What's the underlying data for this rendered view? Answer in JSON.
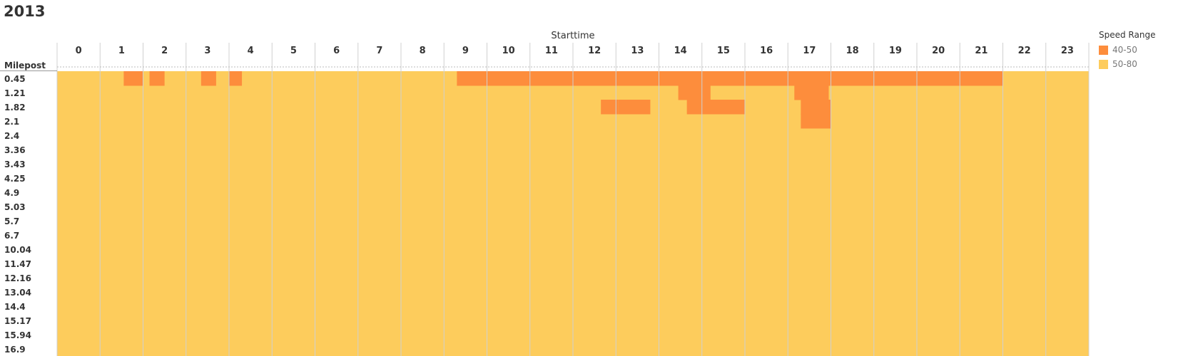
{
  "chart_data": {
    "type": "heatmap",
    "title": "2013",
    "xlabel": "Starttime",
    "ylabel": "Milepost",
    "x": [
      "0",
      "1",
      "2",
      "3",
      "4",
      "5",
      "6",
      "7",
      "8",
      "9",
      "10",
      "11",
      "12",
      "13",
      "14",
      "15",
      "16",
      "17",
      "18",
      "19",
      "20",
      "21",
      "22",
      "23"
    ],
    "y": [
      "0.45",
      "1.21",
      "1.82",
      "2.1",
      "2.4",
      "3.36",
      "3.43",
      "4.25",
      "4.9",
      "5.03",
      "5.7",
      "6.7",
      "10.04",
      "11.47",
      "12.16",
      "13.04",
      "14.4",
      "15.17",
      "15.94",
      "16.9"
    ],
    "legend": {
      "title": "Speed Range",
      "placement": "top-right",
      "entries": [
        {
          "label": "40-50",
          "color": "#fd8d3c"
        },
        {
          "label": "50-80",
          "color": "#fdcc5c"
        }
      ]
    },
    "default_range": "50-80",
    "cells_40_50": [
      {
        "milepost": "0.45",
        "start": 1.55,
        "end": 2.0
      },
      {
        "milepost": "0.45",
        "start": 2.15,
        "end": 2.5
      },
      {
        "milepost": "0.45",
        "start": 3.35,
        "end": 3.7
      },
      {
        "milepost": "0.45",
        "start": 4.0,
        "end": 4.3
      },
      {
        "milepost": "0.45",
        "start": 9.3,
        "end": 22.0
      },
      {
        "milepost": "1.21",
        "start": 14.45,
        "end": 15.2
      },
      {
        "milepost": "1.21",
        "start": 17.15,
        "end": 17.95
      },
      {
        "milepost": "1.82",
        "start": 12.65,
        "end": 13.05
      },
      {
        "milepost": "1.82",
        "start": 13.05,
        "end": 13.8
      },
      {
        "milepost": "1.82",
        "start": 14.65,
        "end": 16.0
      },
      {
        "milepost": "1.82",
        "start": 17.3,
        "end": 18.0
      },
      {
        "milepost": "2.1",
        "start": 17.3,
        "end": 18.0
      }
    ]
  }
}
